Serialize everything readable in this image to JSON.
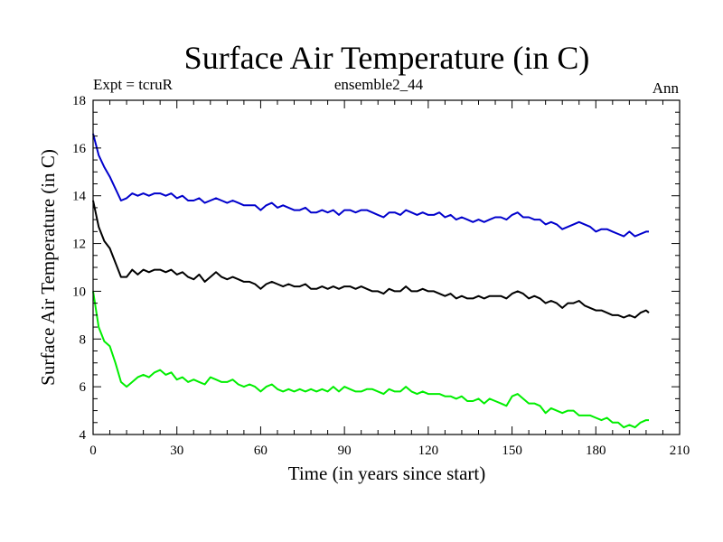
{
  "chart_data": {
    "type": "line",
    "title": "Surface Air Temperature (in C)",
    "subtitle_left": "Expt = tcruR",
    "subtitle_center": "ensemble2_44",
    "subtitle_right": "Ann",
    "xlabel": "Time (in years since start)",
    "ylabel": "Surface Air Temperature (in C)",
    "xlim": [
      0,
      210
    ],
    "ylim": [
      4,
      18
    ],
    "xticks": [
      0,
      30,
      60,
      90,
      120,
      150,
      180,
      210
    ],
    "yticks": [
      4,
      6,
      8,
      10,
      12,
      14,
      16,
      18
    ],
    "grid": false,
    "x": [
      0,
      2,
      4,
      6,
      8,
      10,
      12,
      14,
      16,
      18,
      20,
      22,
      24,
      26,
      28,
      30,
      32,
      34,
      36,
      38,
      40,
      42,
      44,
      46,
      48,
      50,
      52,
      54,
      56,
      58,
      60,
      62,
      64,
      66,
      68,
      70,
      72,
      74,
      76,
      78,
      80,
      82,
      84,
      86,
      88,
      90,
      92,
      94,
      96,
      98,
      100,
      102,
      104,
      106,
      108,
      110,
      112,
      114,
      116,
      118,
      120,
      122,
      124,
      126,
      128,
      130,
      132,
      134,
      136,
      138,
      140,
      142,
      144,
      146,
      148,
      150,
      152,
      154,
      156,
      158,
      160,
      162,
      164,
      166,
      168,
      170,
      172,
      174,
      176,
      178,
      180,
      182,
      184,
      186,
      188,
      190,
      192,
      194,
      196,
      198,
      199
    ],
    "series": [
      {
        "color": "#0000cc",
        "values": [
          16.6,
          15.7,
          15.2,
          14.8,
          14.3,
          13.8,
          13.9,
          14.1,
          14.0,
          14.1,
          14.0,
          14.1,
          14.1,
          14.0,
          14.1,
          13.9,
          14.0,
          13.8,
          13.8,
          13.9,
          13.7,
          13.8,
          13.9,
          13.8,
          13.7,
          13.8,
          13.7,
          13.6,
          13.6,
          13.6,
          13.4,
          13.6,
          13.7,
          13.5,
          13.6,
          13.5,
          13.4,
          13.4,
          13.5,
          13.3,
          13.3,
          13.4,
          13.3,
          13.4,
          13.2,
          13.4,
          13.4,
          13.3,
          13.4,
          13.4,
          13.3,
          13.2,
          13.1,
          13.3,
          13.3,
          13.2,
          13.4,
          13.3,
          13.2,
          13.3,
          13.2,
          13.2,
          13.3,
          13.1,
          13.2,
          13.0,
          13.1,
          13.0,
          12.9,
          13.0,
          12.9,
          13.0,
          13.1,
          13.1,
          13.0,
          13.2,
          13.3,
          13.1,
          13.1,
          13.0,
          13.0,
          12.8,
          12.9,
          12.8,
          12.6,
          12.7,
          12.8,
          12.9,
          12.8,
          12.7,
          12.5,
          12.6,
          12.6,
          12.5,
          12.4,
          12.3,
          12.5,
          12.3,
          12.4,
          12.5,
          12.5
        ]
      },
      {
        "color": "#000000",
        "values": [
          13.8,
          12.7,
          12.1,
          11.8,
          11.2,
          10.6,
          10.6,
          10.9,
          10.7,
          10.9,
          10.8,
          10.9,
          10.9,
          10.8,
          10.9,
          10.7,
          10.8,
          10.6,
          10.5,
          10.7,
          10.4,
          10.6,
          10.8,
          10.6,
          10.5,
          10.6,
          10.5,
          10.4,
          10.4,
          10.3,
          10.1,
          10.3,
          10.4,
          10.3,
          10.2,
          10.3,
          10.2,
          10.2,
          10.3,
          10.1,
          10.1,
          10.2,
          10.1,
          10.2,
          10.1,
          10.2,
          10.2,
          10.1,
          10.2,
          10.1,
          10.0,
          10.0,
          9.9,
          10.1,
          10.0,
          10.0,
          10.2,
          10.0,
          10.0,
          10.1,
          10.0,
          10.0,
          9.9,
          9.8,
          9.9,
          9.7,
          9.8,
          9.7,
          9.7,
          9.8,
          9.7,
          9.8,
          9.8,
          9.8,
          9.7,
          9.9,
          10.0,
          9.9,
          9.7,
          9.8,
          9.7,
          9.5,
          9.6,
          9.5,
          9.3,
          9.5,
          9.5,
          9.6,
          9.4,
          9.3,
          9.2,
          9.2,
          9.1,
          9.0,
          9.0,
          8.9,
          9.0,
          8.9,
          9.1,
          9.2,
          9.1
        ]
      },
      {
        "color": "#00ee00",
        "values": [
          10.0,
          8.5,
          7.9,
          7.7,
          7.0,
          6.2,
          6.0,
          6.2,
          6.4,
          6.5,
          6.4,
          6.6,
          6.7,
          6.5,
          6.6,
          6.3,
          6.4,
          6.2,
          6.3,
          6.2,
          6.1,
          6.4,
          6.3,
          6.2,
          6.2,
          6.3,
          6.1,
          6.0,
          6.1,
          6.0,
          5.8,
          6.0,
          6.1,
          5.9,
          5.8,
          5.9,
          5.8,
          5.9,
          5.8,
          5.9,
          5.8,
          5.9,
          5.8,
          6.0,
          5.8,
          6.0,
          5.9,
          5.8,
          5.8,
          5.9,
          5.9,
          5.8,
          5.7,
          5.9,
          5.8,
          5.8,
          6.0,
          5.8,
          5.7,
          5.8,
          5.7,
          5.7,
          5.7,
          5.6,
          5.6,
          5.5,
          5.6,
          5.4,
          5.4,
          5.5,
          5.3,
          5.5,
          5.4,
          5.3,
          5.2,
          5.6,
          5.7,
          5.5,
          5.3,
          5.3,
          5.2,
          4.9,
          5.1,
          5.0,
          4.9,
          5.0,
          5.0,
          4.8,
          4.8,
          4.8,
          4.7,
          4.6,
          4.7,
          4.5,
          4.5,
          4.3,
          4.4,
          4.3,
          4.5,
          4.6,
          4.6
        ]
      }
    ]
  }
}
